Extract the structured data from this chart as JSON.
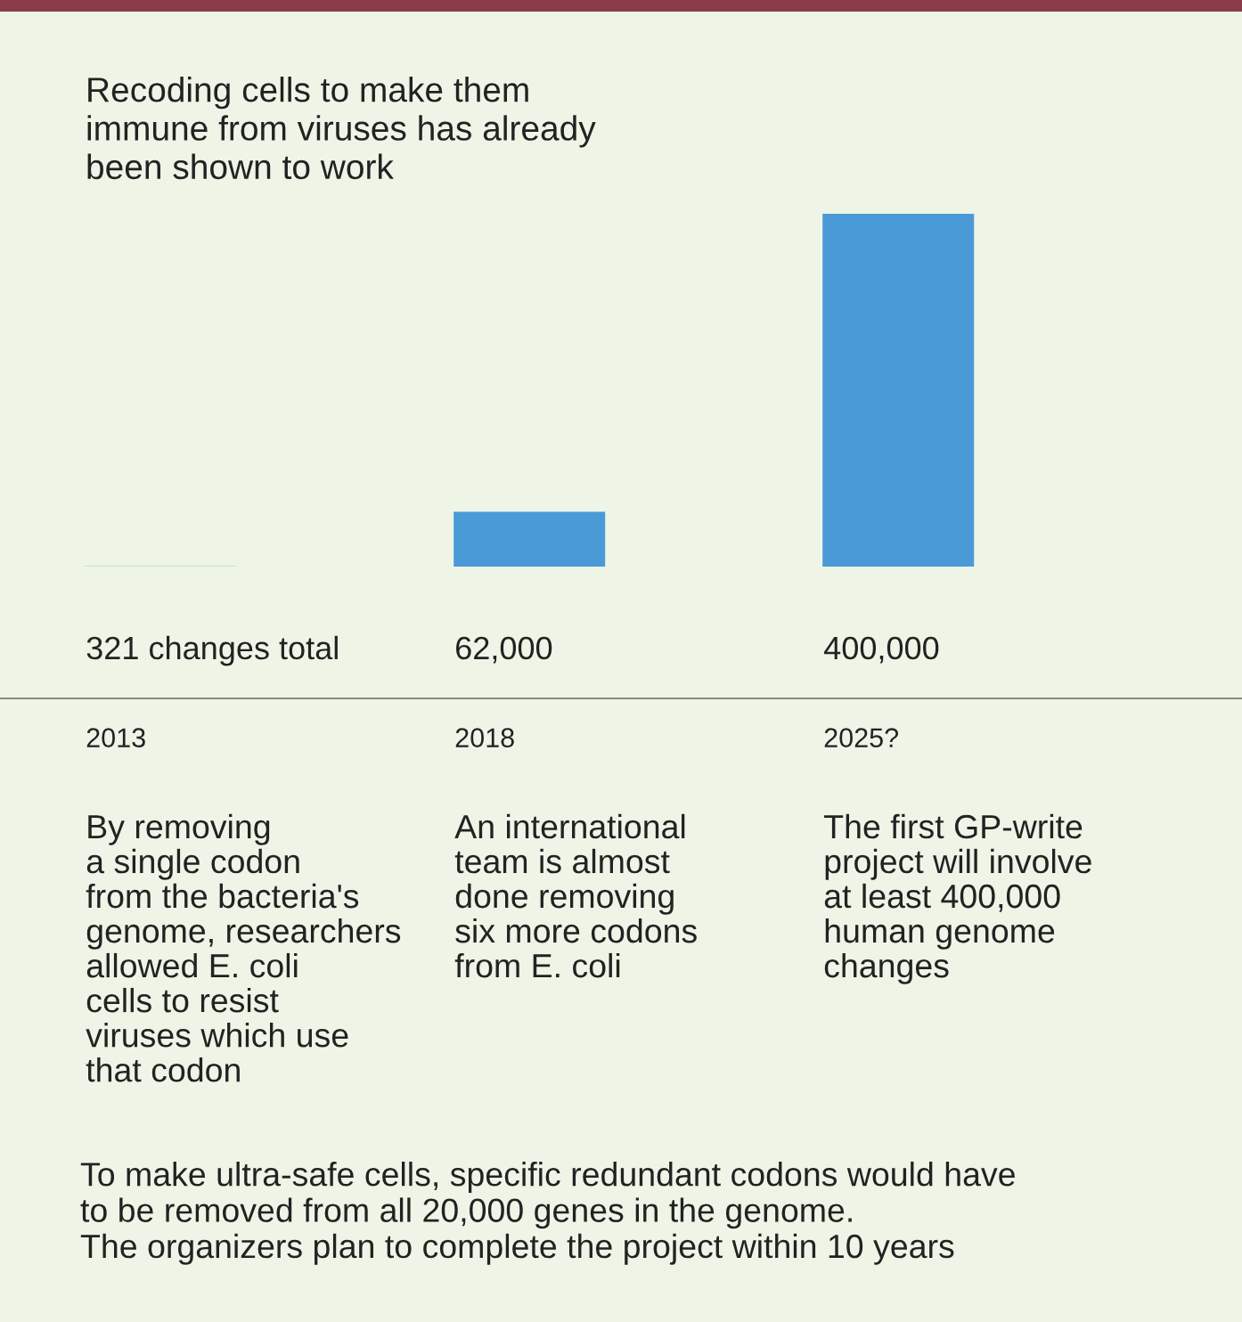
{
  "chart_data": {
    "type": "bar",
    "title": "Recoding cells to make them\nimmune from viruses has already\nbeen shown to work",
    "categories": [
      "2013",
      "2018",
      "2025?"
    ],
    "values": [
      321,
      62000,
      400000
    ],
    "value_labels": [
      "321 changes total",
      "62,000",
      "400,000"
    ],
    "color": "#4a9ad8",
    "annotations": [
      "By removing\na single codon\nfrom the bacteria's\ngenome, researchers\nallowed E. coli\ncells to resist\nviruses which use\nthat codon",
      "An international\nteam is almost\ndone removing\nsix more codons\nfrom E. coli",
      "The first GP-write\nproject will involve\nat least 400,000\nhuman genome\nchanges",
      "To make ultra-safe cells, specific redundant codons would have\nto be removed from all 20,000 genes in the genome.\nThe organizers plan to complete the project within 10 years"
    ]
  }
}
